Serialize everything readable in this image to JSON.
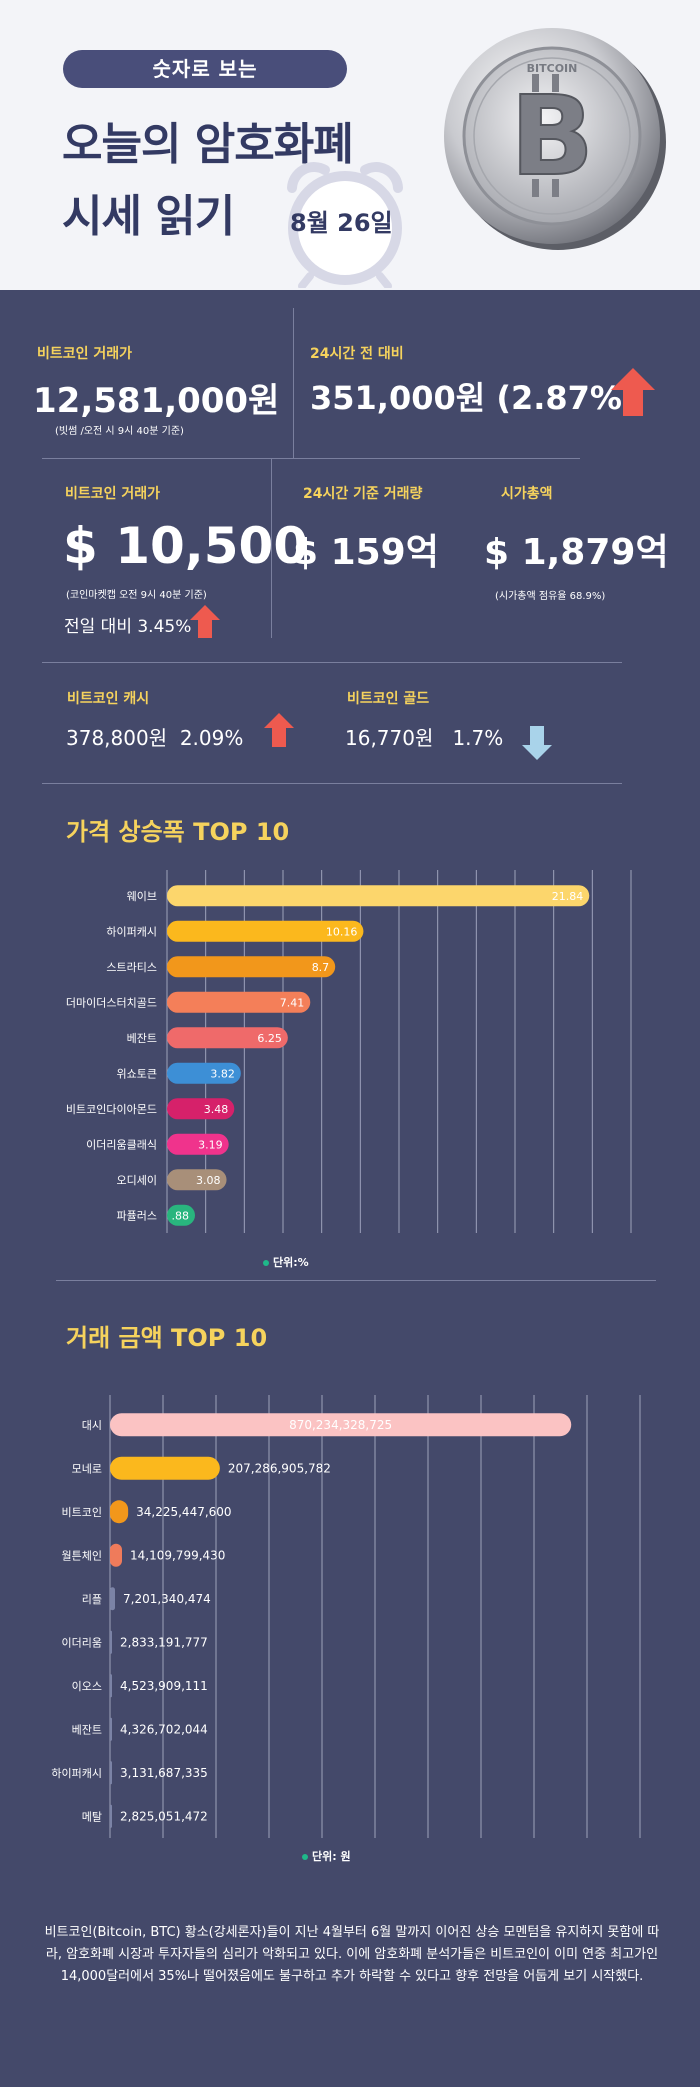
{
  "header": {
    "pill": "숫자로 보는",
    "title_line1": "오늘의 암호화폐",
    "title_line2": "시세 읽기",
    "date": "8월 26일",
    "coin_ring_text": "BITCOIN"
  },
  "stats": {
    "btc_krw": {
      "label": "비트코인 거래가",
      "value": "12,581,000원",
      "note": "(빗썸 /오전 시 9시 40분 기준)"
    },
    "change_24h": {
      "label": "24시간 전 대비",
      "value": "351,000원 (2.87%)",
      "direction": "up"
    },
    "btc_usd": {
      "label": "비트코인 거래가",
      "value": "$ 10,500",
      "note": "(코인마켓캡 오전 9시 40분  기준)",
      "prev_day": "전일 대비 3.45%",
      "direction": "up"
    },
    "volume_24h": {
      "label": "24시간 기준 거래량",
      "value": "$ 159억"
    },
    "market_cap": {
      "label": "시가총액",
      "value": "$ 1,879억",
      "note": "(시가총액 점유율 68.9%)"
    },
    "btc_cash": {
      "label": "비트코인 캐시",
      "value": "378,800원  2.09%",
      "direction": "up"
    },
    "btc_gold": {
      "label": "비트코인 골드",
      "value": "16,770원   1.7%",
      "direction": "down"
    }
  },
  "colors": {
    "background": "#44496a",
    "header_bg": "#f3f4f8",
    "accent_yellow": "#f6d35d",
    "arrow_up": "#ee5a4f",
    "arrow_down": "#a9d3ea"
  },
  "chart_data": [
    {
      "type": "bar",
      "orientation": "horizontal",
      "title": "가격 상승폭 TOP 10",
      "unit": "단위:%",
      "categories": [
        "웨이브",
        "하이퍼캐시",
        "스트라티스",
        "더마이더스터치골드",
        "베잔트",
        "위쇼토큰",
        "비트코인다이아몬드",
        "이더리움클래식",
        "오디세이",
        "파퓰러스"
      ],
      "values": [
        21.84,
        10.16,
        8.7,
        7.41,
        6.25,
        3.82,
        3.48,
        3.19,
        3.08,
        0.88
      ],
      "value_labels": [
        "21.84",
        "10.16",
        "8.7",
        "7.41",
        "6.25",
        "3.82",
        "3.48",
        "3.19",
        "3.08",
        ".88"
      ],
      "colors": [
        "#fcd66c",
        "#fbb81d",
        "#f2971b",
        "#f47f59",
        "#ef6a6a",
        "#3d8fd6",
        "#d6216a",
        "#f0338c",
        "#a88f79",
        "#29b57e"
      ],
      "xlim": [
        0,
        24
      ],
      "grid": true
    },
    {
      "type": "bar",
      "orientation": "horizontal",
      "title": "거래 금액 TOP 10",
      "unit": "단위: 원",
      "categories": [
        "대시",
        "모네로",
        "비트코인",
        "월튼체인",
        "리플",
        "이더리움",
        "이오스",
        "베잔트",
        "하이퍼캐시",
        "메탈"
      ],
      "values": [
        870234328725,
        207286905782,
        34225447600,
        14109799430,
        7201340474,
        2833191777,
        4523909111,
        4326702044,
        3131687335,
        2825051472
      ],
      "value_labels": [
        "870,234,328,725",
        "207,286,905,782",
        "34,225,447,600",
        "14,109,799,430",
        "7,201,340,474",
        "2,833,191,777",
        "4,523,909,111",
        "4,326,702,044",
        "3,131,687,335",
        "2,825,051,472"
      ],
      "colors": [
        "#fbc3c3",
        "#fbb81d",
        "#f2971b",
        "#ef7b5b",
        "#7b83a6",
        "#7b83a6",
        "#7b83a6",
        "#7b83a6",
        "#7b83a6",
        "#7b83a6"
      ],
      "xlim": [
        0,
        1000000000000
      ],
      "grid": true
    }
  ],
  "footer": {
    "text": "비트코인(Bitcoin, BTC) 황소(강세론자)들이 지난 4월부터 6월 말까지 이어진 상승 모멘텀을 유지하지 못함에 따라, 암호화폐 시장과 투자자들의 심리가 악화되고 있다. 이에 암호화폐 분석가들은 비트코인이 이미 연중 최고가인 14,000달러에서 35%나 떨어졌음에도 불구하고 추가 하락할 수 있다고 향후 전망을 어둡게 보기 시작했다."
  }
}
